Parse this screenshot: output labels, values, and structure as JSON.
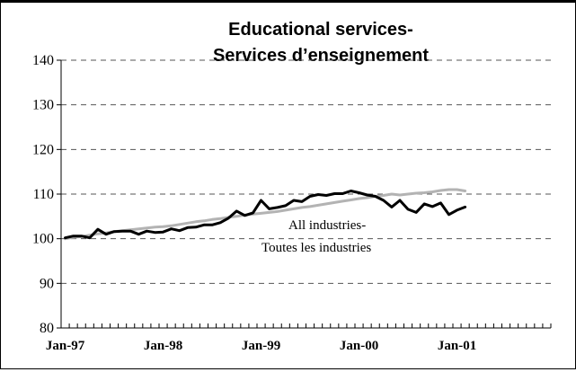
{
  "chart_data": {
    "type": "line",
    "title": "Educational services-",
    "subtitle": "Services d’enseignement",
    "xlabel": "",
    "ylabel": "",
    "ylim": [
      80,
      140
    ],
    "y_ticks": [
      "80",
      "90",
      "100",
      "110",
      "120",
      "130",
      "140"
    ],
    "x_tick_labels": [
      "Jan-97",
      "Jan-98",
      "Jan-99",
      "Jan-00",
      "Jan-01"
    ],
    "x_start": "1997-01",
    "x_end": "2001-12",
    "grid": "horizontal dashed",
    "annotation": [
      "All industries-",
      "Toutes les industries"
    ],
    "series": [
      {
        "name": "Educational services",
        "color": "#000000",
        "x": [
          "1997-01",
          "1997-02",
          "1997-03",
          "1997-04",
          "1997-05",
          "1997-06",
          "1997-07",
          "1997-08",
          "1997-09",
          "1997-10",
          "1997-11",
          "1997-12",
          "1998-01",
          "1998-02",
          "1998-03",
          "1998-04",
          "1998-05",
          "1998-06",
          "1998-07",
          "1998-08",
          "1998-09",
          "1998-10",
          "1998-11",
          "1998-12",
          "1999-01",
          "1999-02",
          "1999-03",
          "1999-04",
          "1999-05",
          "1999-06",
          "1999-07",
          "1999-08",
          "1999-09",
          "1999-10",
          "1999-11",
          "1999-12",
          "2000-01",
          "2000-02",
          "2000-03",
          "2000-04",
          "2000-05",
          "2000-06",
          "2000-07",
          "2000-08",
          "2000-09",
          "2000-10",
          "2000-11",
          "2000-12",
          "2001-01",
          "2001-02"
        ],
        "values": [
          100.2,
          100.6,
          100.6,
          100.2,
          102.1,
          101.0,
          101.6,
          101.7,
          101.7,
          101.0,
          101.7,
          101.4,
          101.5,
          102.2,
          101.8,
          102.5,
          102.6,
          103.1,
          103.1,
          103.6,
          104.6,
          106.2,
          105.2,
          105.8,
          108.6,
          106.7,
          107.0,
          107.4,
          108.6,
          108.3,
          109.5,
          109.9,
          109.7,
          110.1,
          110.1,
          110.7,
          110.3,
          109.8,
          109.5,
          108.6,
          107.1,
          108.6,
          106.6,
          105.9,
          107.8,
          107.2,
          108.0,
          105.4,
          106.4,
          107.1
        ]
      },
      {
        "name": "All industries",
        "color": "#b3b3b3",
        "x": [
          "1997-01",
          "1997-02",
          "1997-03",
          "1997-04",
          "1997-05",
          "1997-06",
          "1997-07",
          "1997-08",
          "1997-09",
          "1997-10",
          "1997-11",
          "1997-12",
          "1998-01",
          "1998-02",
          "1998-03",
          "1998-04",
          "1998-05",
          "1998-06",
          "1998-07",
          "1998-08",
          "1998-09",
          "1998-10",
          "1998-11",
          "1998-12",
          "1999-01",
          "1999-02",
          "1999-03",
          "1999-04",
          "1999-05",
          "1999-06",
          "1999-07",
          "1999-08",
          "1999-09",
          "1999-10",
          "1999-11",
          "1999-12",
          "2000-01",
          "2000-02",
          "2000-03",
          "2000-04",
          "2000-05",
          "2000-06",
          "2000-07",
          "2000-08",
          "2000-09",
          "2000-10",
          "2000-11",
          "2000-12",
          "2001-01",
          "2001-02"
        ],
        "values": [
          100.0,
          100.3,
          100.5,
          100.8,
          101.1,
          101.3,
          101.6,
          101.8,
          102.0,
          102.2,
          102.4,
          102.6,
          102.7,
          102.9,
          103.2,
          103.5,
          103.8,
          104.0,
          104.3,
          104.5,
          104.8,
          105.0,
          105.3,
          105.5,
          105.7,
          105.9,
          106.1,
          106.4,
          106.7,
          107.0,
          107.2,
          107.5,
          107.8,
          108.1,
          108.4,
          108.7,
          109.0,
          109.2,
          109.5,
          109.7,
          110.0,
          109.8,
          110.0,
          110.2,
          110.3,
          110.5,
          110.8,
          111.0,
          111.0,
          110.7
        ]
      }
    ]
  }
}
